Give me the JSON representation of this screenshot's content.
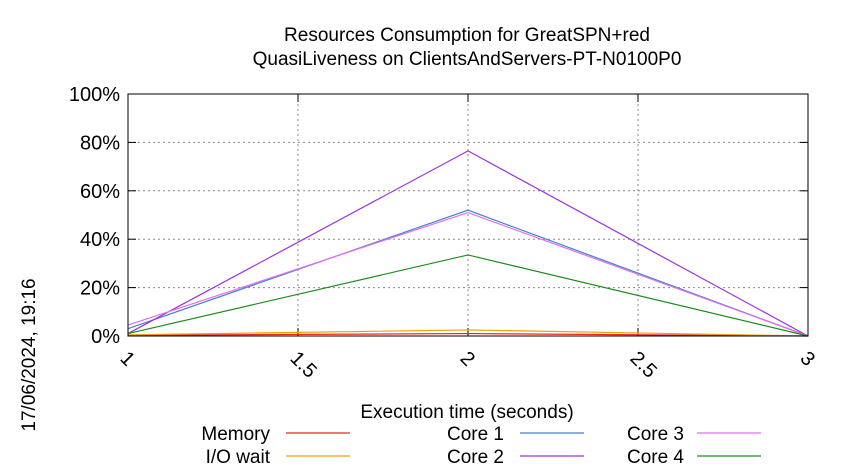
{
  "chart_data": {
    "type": "line",
    "title": [
      "Resources Consumption for GreatSPN+red",
      "QuasiLiveness on ClientsAndServers-PT-N0100P0"
    ],
    "xlabel": "Execution time (seconds)",
    "ylabel": "",
    "x": [
      1,
      2,
      3
    ],
    "xlim": [
      1,
      3
    ],
    "ylim": [
      0,
      100
    ],
    "x_ticks": [
      "1",
      "1.5",
      "2",
      "2.5",
      "3"
    ],
    "y_ticks": [
      "0%",
      "20%",
      "40%",
      "60%",
      "80%",
      "100%"
    ],
    "grid": true,
    "legend_position": "bottom",
    "series": [
      {
        "name": "Memory",
        "color": "#e8281f",
        "values": [
          0.3,
          1.0,
          0
        ]
      },
      {
        "name": "I/O wait",
        "color": "#f0a000",
        "values": [
          0.5,
          2.5,
          0
        ]
      },
      {
        "name": "Core 1",
        "color": "#4a7fd0",
        "values": [
          3,
          52,
          0
        ]
      },
      {
        "name": "Core 2",
        "color": "#9b30e0",
        "values": [
          1,
          76.5,
          0
        ]
      },
      {
        "name": "Core 3",
        "color": "#e070f0",
        "values": [
          4.5,
          51,
          0
        ]
      },
      {
        "name": "Core 4",
        "color": "#1e8a1e",
        "values": [
          1,
          33.5,
          0
        ]
      }
    ]
  },
  "side_label": "17/06/2024, 19:16"
}
